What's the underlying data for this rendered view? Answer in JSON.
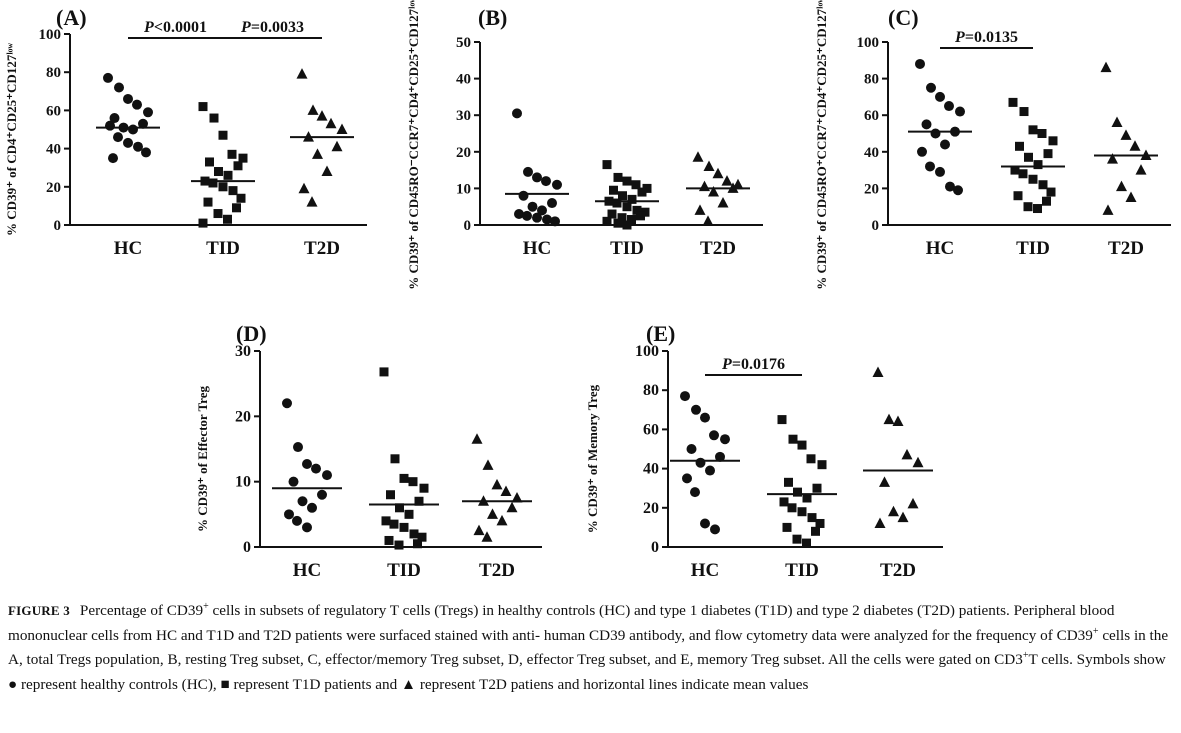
{
  "figure_label": "FIGURE 3",
  "caption": {
    "label": "FIGURE 3",
    "p1": "Percentage of CD39",
    "sup1": "+",
    "p2": " cells in subsets of regulatory T cells (Tregs) in healthy controls (HC) and type 1 diabetes (T1D) and type 2 diabetes (T2D) patients. Peripheral blood mononuclear cells from HC and T1D and T2D patients were surfaced stained with anti- human CD39 antibody, and flow cytometry data were analyzed for the frequency of CD39",
    "sup2": "+",
    "p3": " cells in the A, total Tregs population, B, resting Treg subset, C, effector/memory Treg subset, D, effector Treg subset, and E, memory Treg subset. All the cells were gated on CD3",
    "sup3": "+",
    "p4": "T cells. Symbols show ",
    "sym_circle": "●",
    "p5": " represent healthy controls (HC), ",
    "sym_square": "■",
    "p6": " represent T1D patients and ",
    "sym_triangle": "▲",
    "p7": " represent T2D patiens and horizontal lines indicate mean values"
  },
  "colors": {
    "ink": "#111111",
    "background": "#ffffff"
  },
  "chart_data": [
    {
      "panel": "(A)",
      "type": "scatter",
      "ylabel": "% CD39⁺ of CD4⁺CD25⁺CD127ˡᵒʷ",
      "ylim": [
        0,
        100
      ],
      "yticks": [
        0,
        20,
        40,
        60,
        80,
        100
      ],
      "categories": [
        "HC",
        "TID",
        "T2D"
      ],
      "series": [
        {
          "name": "HC",
          "marker": "circle",
          "mean": 51,
          "values": [
            77,
            72,
            66,
            63,
            59,
            56,
            53,
            51,
            50,
            52,
            46,
            43,
            41,
            38,
            35
          ]
        },
        {
          "name": "TID",
          "marker": "square",
          "mean": 23,
          "values": [
            62,
            56,
            47,
            37,
            35,
            33,
            31,
            28,
            26,
            23,
            22,
            20,
            18,
            14,
            12,
            9,
            6,
            3,
            1
          ]
        },
        {
          "name": "T2D",
          "marker": "triangle",
          "mean": 46,
          "values": [
            79,
            60,
            57,
            53,
            50,
            46,
            41,
            37,
            28,
            19,
            12
          ]
        }
      ],
      "brackets": [
        {
          "from": "HC",
          "to": "TID",
          "p": "P",
          "label": "<0.0001"
        },
        {
          "from": "TID",
          "to": "T2D",
          "p": "P",
          "label": "=0.0033"
        }
      ]
    },
    {
      "panel": "(B)",
      "type": "scatter",
      "ylabel": "% CD39⁺ of CD45RO⁻CCR7⁺CD4⁺CD25⁺CD127ˡᵒʷ",
      "ylim": [
        0,
        50
      ],
      "yticks": [
        0,
        10,
        20,
        30,
        40,
        50
      ],
      "categories": [
        "HC",
        "TID",
        "T2D"
      ],
      "series": [
        {
          "name": "HC",
          "marker": "circle",
          "mean": 8.5,
          "values": [
            30.5,
            14.5,
            13,
            12,
            11,
            8,
            6,
            5,
            4,
            3,
            2.5,
            2,
            1.5,
            1
          ]
        },
        {
          "name": "TID",
          "marker": "square",
          "mean": 6.5,
          "values": [
            16.5,
            13,
            12,
            11,
            10,
            9.5,
            9,
            8,
            7,
            6.5,
            6,
            5,
            4,
            3.5,
            3,
            2.5,
            2,
            1.5,
            1,
            0.5,
            0
          ]
        },
        {
          "name": "T2D",
          "marker": "triangle",
          "mean": 10,
          "values": [
            18.5,
            16,
            14,
            12,
            11,
            10.5,
            10,
            9,
            6,
            4,
            1
          ]
        }
      ]
    },
    {
      "panel": "(C)",
      "type": "scatter",
      "ylabel": "% CD39⁺ of CD45RO⁺CCR7⁺CD4⁺CD25⁺CD127ˡᵒʷ",
      "ylim": [
        0,
        100
      ],
      "yticks": [
        0,
        20,
        40,
        60,
        80,
        100
      ],
      "categories": [
        "HC",
        "TID",
        "T2D"
      ],
      "series": [
        {
          "name": "HC",
          "marker": "circle",
          "mean": 51,
          "values": [
            88,
            75,
            70,
            65,
            62,
            55,
            51,
            50,
            44,
            40,
            32,
            29,
            21,
            19
          ]
        },
        {
          "name": "TID",
          "marker": "square",
          "mean": 32,
          "values": [
            67,
            62,
            52,
            50,
            46,
            43,
            39,
            37,
            33,
            30,
            28,
            25,
            22,
            18,
            16,
            13,
            10,
            9
          ]
        },
        {
          "name": "T2D",
          "marker": "triangle",
          "mean": 38,
          "values": [
            86,
            56,
            49,
            43,
            38,
            36,
            30,
            21,
            15,
            8
          ]
        }
      ],
      "brackets": [
        {
          "from": "HC",
          "to": "TID",
          "p": "P",
          "label": "=0.0135"
        }
      ]
    },
    {
      "panel": "(D)",
      "type": "scatter",
      "ylabel": "% CD39⁺ of Effector Treg",
      "ylim": [
        0,
        30
      ],
      "yticks": [
        0,
        10,
        20,
        30
      ],
      "categories": [
        "HC",
        "TID",
        "T2D"
      ],
      "series": [
        {
          "name": "HC",
          "marker": "circle",
          "mean": 9,
          "values": [
            22,
            15.3,
            12.7,
            12,
            11,
            10,
            8,
            7,
            6,
            5,
            4,
            3
          ]
        },
        {
          "name": "TID",
          "marker": "square",
          "mean": 6.5,
          "values": [
            26.8,
            13.5,
            10.5,
            10,
            9,
            8,
            7,
            6,
            5,
            4,
            3.5,
            3,
            2,
            1.5,
            1,
            0.5,
            0.3
          ]
        },
        {
          "name": "T2D",
          "marker": "triangle",
          "mean": 7,
          "values": [
            16.5,
            12.5,
            9.5,
            8.5,
            7.5,
            7,
            6,
            5,
            4,
            2.5,
            1.5
          ]
        }
      ]
    },
    {
      "panel": "(E)",
      "type": "scatter",
      "ylabel": "% CD39⁺ of Memory Treg",
      "ylim": [
        0,
        100
      ],
      "yticks": [
        0,
        20,
        40,
        60,
        80,
        100
      ],
      "categories": [
        "HC",
        "TID",
        "T2D"
      ],
      "series": [
        {
          "name": "HC",
          "marker": "circle",
          "mean": 44,
          "values": [
            77,
            70,
            66,
            57,
            55,
            50,
            46,
            43,
            39,
            35,
            28,
            12,
            9
          ]
        },
        {
          "name": "TID",
          "marker": "square",
          "mean": 27,
          "values": [
            65,
            55,
            52,
            45,
            42,
            33,
            30,
            28,
            25,
            23,
            20,
            18,
            15,
            12,
            10,
            8,
            4,
            2
          ]
        },
        {
          "name": "T2D",
          "marker": "triangle",
          "mean": 39,
          "values": [
            89,
            65,
            64,
            47,
            43,
            33,
            22,
            18,
            15,
            12
          ]
        }
      ],
      "brackets": [
        {
          "from": "HC",
          "to": "TID",
          "p": "P",
          "label": "=0.0176"
        }
      ]
    }
  ]
}
